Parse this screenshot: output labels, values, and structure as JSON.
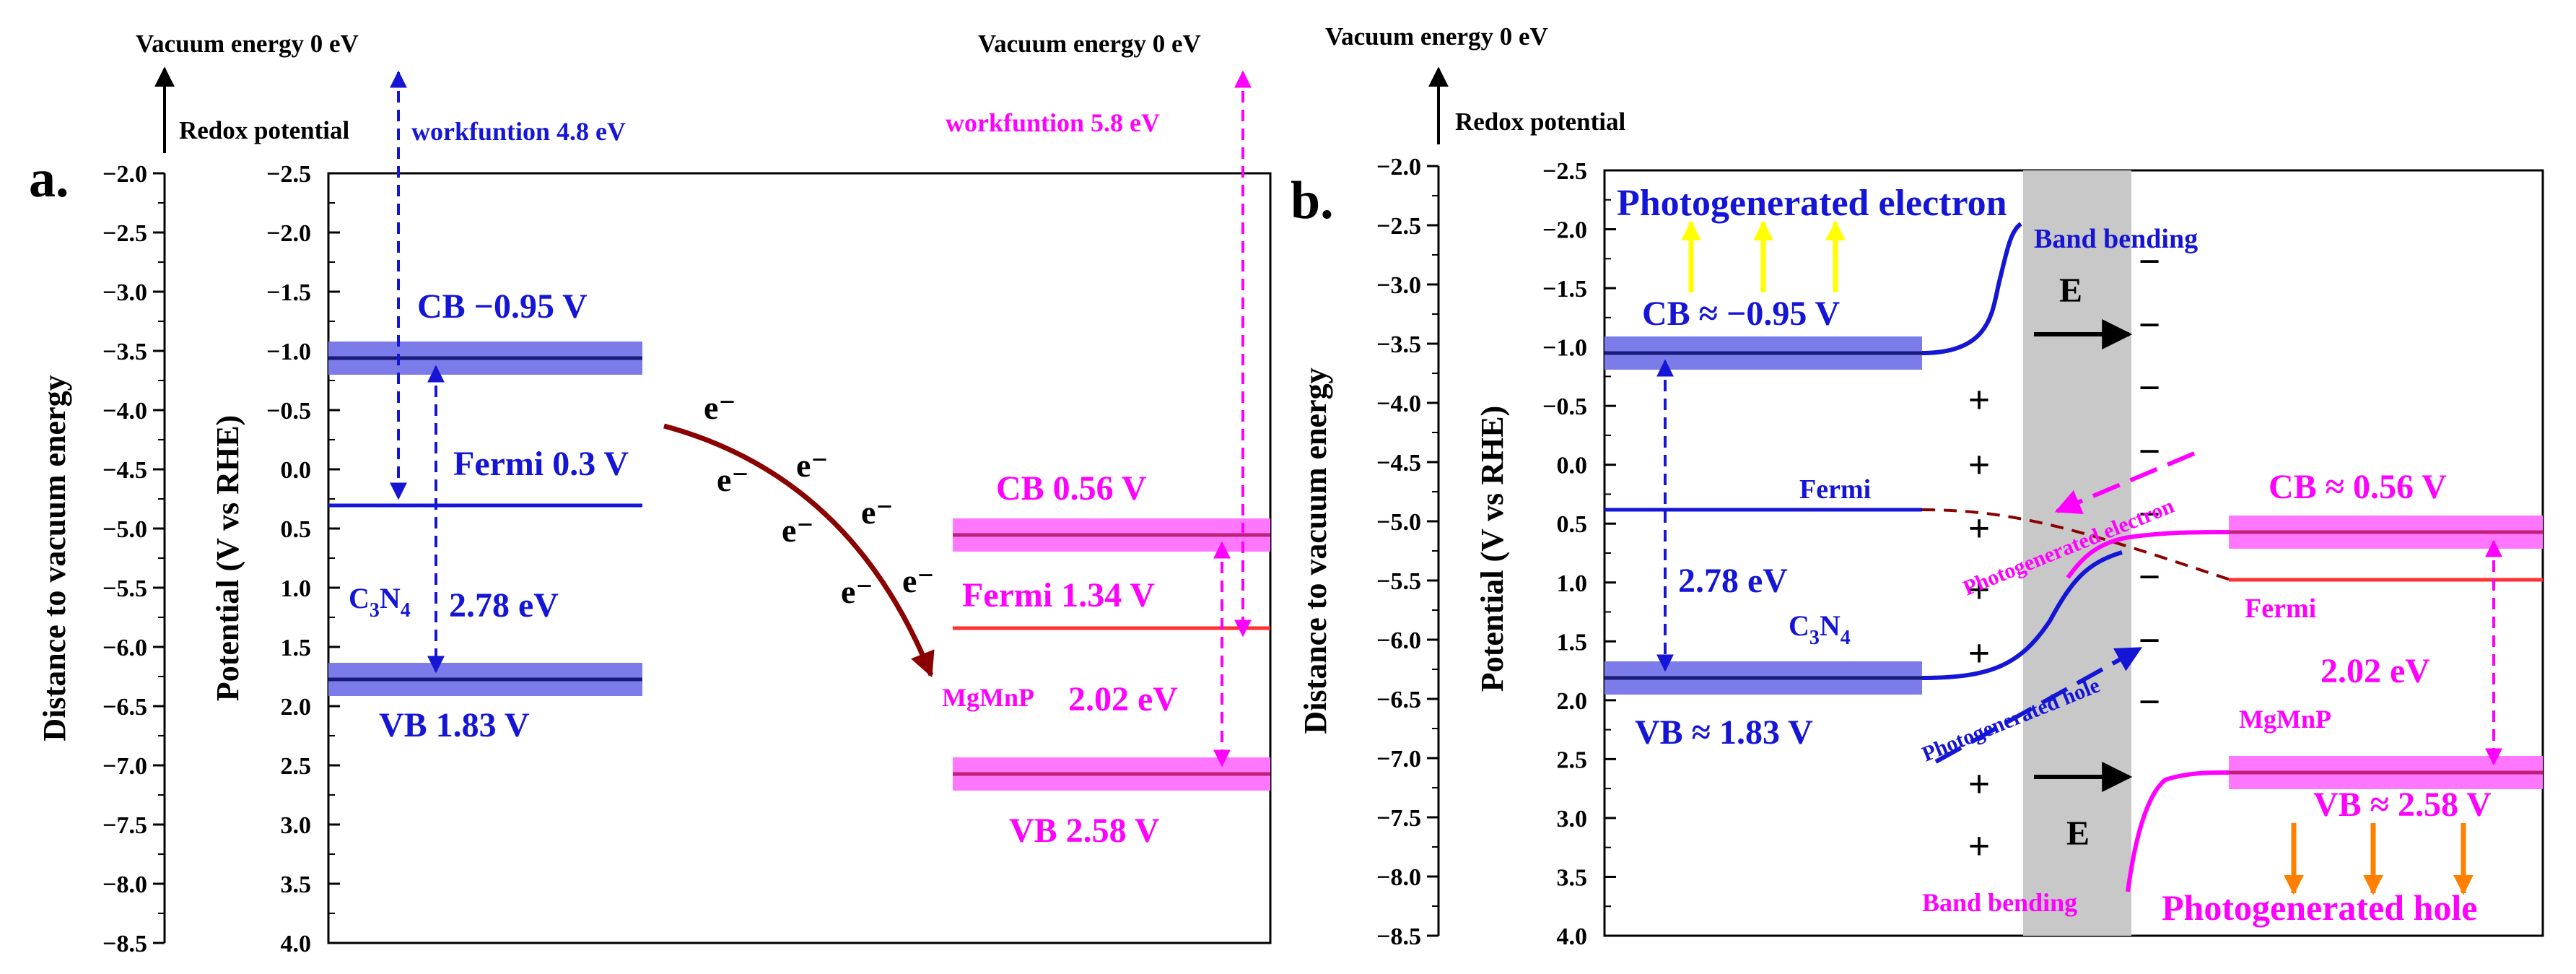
{
  "colors": {
    "blue": "#1515d6",
    "blue_band": "#7b7bea",
    "magenta": "#ff00ff",
    "magenta_band": "#ff77ff",
    "red": "#ff3030",
    "darkred": "#8b0000",
    "yellow": "#ffff00",
    "orange": "#ff8000",
    "gray": "#c8c8c8",
    "black": "#000000"
  },
  "panel_a": {
    "label": "a.",
    "vacuum_left": "Vacuum energy 0 eV",
    "vacuum_right": "Vacuum energy 0 eV",
    "redox": "Redox potential",
    "workfunction_c3n4": "workfuntion 4.8 eV",
    "workfunction_mgmnp": "workfuntion 5.8 eV",
    "axis_left_title": "Distance to vacuum energy",
    "axis_right_title": "Potential (V vs RHE)",
    "left_ticks": [
      "−2.0",
      "−2.5",
      "−3.0",
      "−3.5",
      "−4.0",
      "−4.5",
      "−5.0",
      "−5.5",
      "−6.0",
      "−6.5",
      "−7.0",
      "−7.5",
      "−8.0",
      "−8.5"
    ],
    "right_ticks": [
      "−2.5",
      "−2.0",
      "−1.5",
      "−1.0",
      "−0.5",
      "0.0",
      "0.5",
      "1.0",
      "1.5",
      "2.0",
      "2.5",
      "3.0",
      "3.5",
      "4.0"
    ],
    "c3n4_cb": "CB −0.95 V",
    "c3n4_fermi": "Fermi 0.3 V",
    "c3n4_gap": "2.78 eV",
    "c3n4_vb": "VB 1.83 V",
    "c3n4_name_main": "C",
    "c3n4_name_sub1": "3",
    "c3n4_name_mid": "N",
    "c3n4_name_sub2": "4",
    "mgmnp_cb": "CB 0.56 V",
    "mgmnp_fermi": "Fermi 1.34 V",
    "mgmnp_name": "MgMnP",
    "mgmnp_gap": "2.02 eV",
    "mgmnp_vb": "VB 2.58 V",
    "electron": "e⁻"
  },
  "panel_b": {
    "label": "b.",
    "vacuum": "Vacuum energy 0 eV",
    "redox": "Redox potential",
    "axis_left_title": "Distance to vacuum energy",
    "axis_right_title": "Potential (V vs RHE)",
    "left_ticks": [
      "−2.0",
      "−2.5",
      "−3.0",
      "−3.5",
      "−4.0",
      "−4.5",
      "−5.0",
      "−5.5",
      "−6.0",
      "−6.5",
      "−7.0",
      "−7.5",
      "−8.0",
      "−8.5"
    ],
    "right_ticks": [
      "−2.5",
      "−2.0",
      "−1.5",
      "−1.0",
      "−0.5",
      "0.0",
      "0.5",
      "1.0",
      "1.5",
      "2.0",
      "2.5",
      "3.0",
      "3.5",
      "4.0"
    ],
    "photo_electron_top": "Photogenerated electron",
    "band_bending_top": "Band bending",
    "c3n4_cb": "CB ≈ −0.95 V",
    "field_top": "E",
    "field_bottom": "E",
    "fermi_left": "Fermi",
    "fermi_right": "Fermi",
    "gap_left": "2.78 eV",
    "c3n4_name_main": "C",
    "c3n4_name_sub1": "3",
    "c3n4_name_mid": "N",
    "c3n4_name_sub2": "4",
    "c3n4_vb": "VB ≈ 1.83 V",
    "photo_electron_diag": "Photogenerated electron",
    "photo_hole_diag": "Photogenerated hole",
    "mgmnp_cb": "CB ≈ 0.56 V",
    "mgmnp_gap": "2.02 eV",
    "mgmnp_name": "MgMnP",
    "mgmnp_vb": "VB ≈ 2.58 V",
    "band_bending_bottom": "Band bending",
    "photo_hole_bottom": "Photogenerated hole",
    "plus": "+",
    "minus": "−"
  }
}
